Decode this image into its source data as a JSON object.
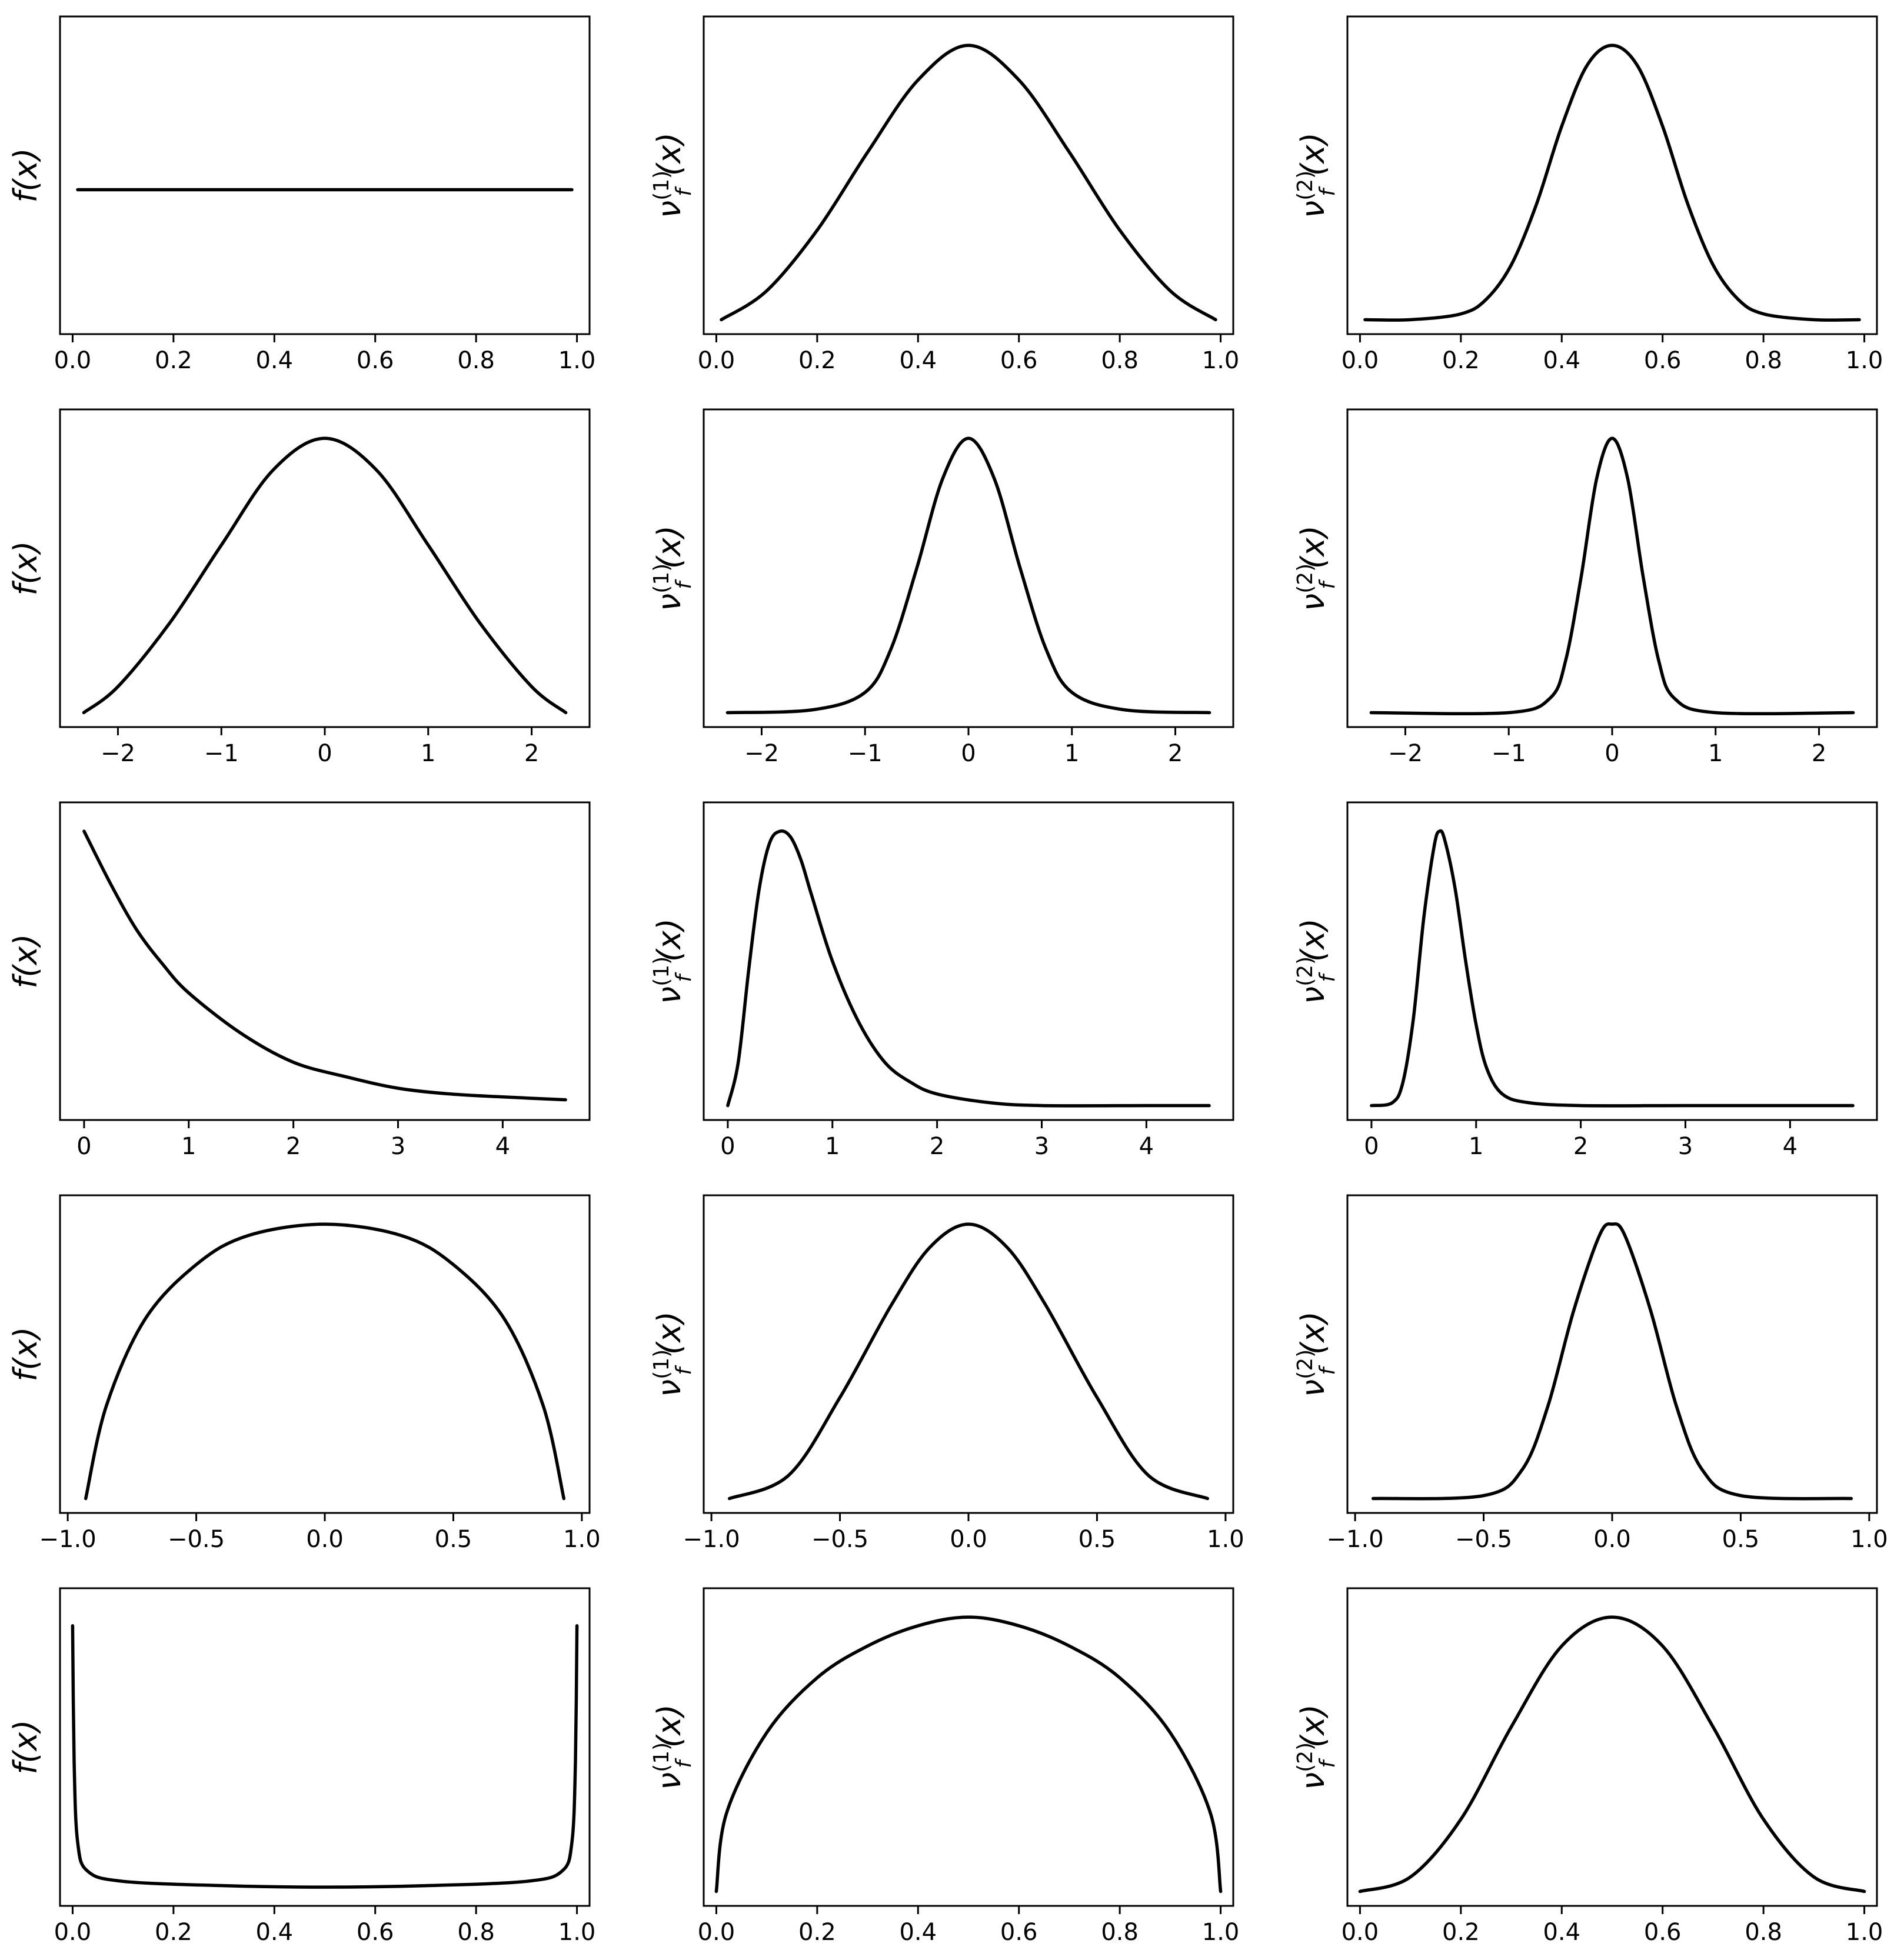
{
  "figure": {
    "rows": 5,
    "cols": 3,
    "background": "#ffffff",
    "line_color": "#000000"
  },
  "row_xaxes": [
    {
      "ticks": [
        0.0,
        0.2,
        0.4,
        0.6,
        0.8,
        1.0
      ],
      "labels": [
        "0.0",
        "0.2",
        "0.4",
        "0.6",
        "0.8",
        "1.0"
      ]
    },
    {
      "ticks": [
        -2,
        -1,
        0,
        1,
        2
      ],
      "labels": [
        "−2",
        "−1",
        "0",
        "1",
        "2"
      ]
    },
    {
      "ticks": [
        0,
        1,
        2,
        3,
        4
      ],
      "labels": [
        "0",
        "1",
        "2",
        "3",
        "4"
      ]
    },
    {
      "ticks": [
        -1.0,
        -0.5,
        0.0,
        0.5,
        1.0
      ],
      "labels": [
        "−1.0",
        "−0.5",
        "0.0",
        "0.5",
        "1.0"
      ]
    },
    {
      "ticks": [
        0.0,
        0.2,
        0.4,
        0.6,
        0.8,
        1.0
      ],
      "labels": [
        "0.0",
        "0.2",
        "0.4",
        "0.6",
        "0.8",
        "1.0"
      ]
    }
  ],
  "col_ylabels": [
    {
      "main": "f(x)",
      "sup": "",
      "sub": ""
    },
    {
      "main": "ν",
      "sup": "(1)",
      "sub": "f",
      "tail": "(x)"
    },
    {
      "main": "ν",
      "sup": "(2)",
      "sub": "f",
      "tail": "(x)"
    }
  ],
  "chart_data": [
    {
      "type": "line",
      "row": 0,
      "col": 0,
      "xlim": [
        -0.025,
        1.025
      ],
      "ylim": [
        0,
        1.1
      ],
      "x": [
        0.01,
        0.25,
        0.5,
        0.75,
        0.99
      ],
      "y": [
        0.5,
        0.5,
        0.5,
        0.5,
        0.5
      ]
    },
    {
      "type": "line",
      "row": 0,
      "col": 1,
      "xlim": [
        -0.025,
        1.025
      ],
      "ylim": [
        0,
        1.1
      ],
      "x": [
        0.01,
        0.1,
        0.2,
        0.3,
        0.4,
        0.5,
        0.6,
        0.7,
        0.8,
        0.9,
        0.99
      ],
      "y": [
        0.05,
        0.15,
        0.36,
        0.63,
        0.88,
        1.0,
        0.88,
        0.63,
        0.36,
        0.15,
        0.05
      ]
    },
    {
      "type": "line",
      "row": 0,
      "col": 2,
      "xlim": [
        -0.025,
        1.025
      ],
      "ylim": [
        0,
        1.1
      ],
      "x": [
        0.01,
        0.1,
        0.2,
        0.25,
        0.3,
        0.35,
        0.4,
        0.45,
        0.5,
        0.55,
        0.6,
        0.65,
        0.7,
        0.75,
        0.8,
        0.9,
        0.99
      ],
      "y": [
        0.05,
        0.05,
        0.07,
        0.12,
        0.24,
        0.45,
        0.72,
        0.93,
        1.0,
        0.93,
        0.72,
        0.45,
        0.24,
        0.12,
        0.07,
        0.05,
        0.05
      ]
    },
    {
      "type": "line",
      "row": 1,
      "col": 0,
      "xlim": [
        -2.56,
        2.56
      ],
      "ylim": [
        0,
        1.1
      ],
      "x": [
        -2.33,
        -2.0,
        -1.5,
        -1.0,
        -0.5,
        0.0,
        0.5,
        1.0,
        1.5,
        2.0,
        2.33
      ],
      "y": [
        0.05,
        0.14,
        0.36,
        0.63,
        0.89,
        1.0,
        0.89,
        0.63,
        0.36,
        0.14,
        0.05
      ]
    },
    {
      "type": "line",
      "row": 1,
      "col": 1,
      "xlim": [
        -2.56,
        2.56
      ],
      "ylim": [
        0,
        1.1
      ],
      "x": [
        -2.33,
        -1.5,
        -1.0,
        -0.75,
        -0.5,
        -0.25,
        0.0,
        0.25,
        0.5,
        0.75,
        1.0,
        1.5,
        2.33
      ],
      "y": [
        0.05,
        0.06,
        0.12,
        0.27,
        0.55,
        0.86,
        1.0,
        0.86,
        0.55,
        0.27,
        0.12,
        0.06,
        0.05
      ]
    },
    {
      "type": "line",
      "row": 1,
      "col": 2,
      "xlim": [
        -2.56,
        2.56
      ],
      "ylim": [
        0,
        1.1
      ],
      "x": [
        -2.33,
        -1.0,
        -0.6,
        -0.45,
        -0.3,
        -0.15,
        0.0,
        0.15,
        0.3,
        0.45,
        0.6,
        1.0,
        2.33
      ],
      "y": [
        0.05,
        0.05,
        0.1,
        0.23,
        0.52,
        0.86,
        1.0,
        0.86,
        0.52,
        0.23,
        0.1,
        0.05,
        0.05
      ]
    },
    {
      "type": "line",
      "row": 2,
      "col": 0,
      "xlim": [
        -0.23,
        4.83
      ],
      "ylim": [
        0,
        1.1
      ],
      "x": [
        0.0,
        0.25,
        0.5,
        0.75,
        1.0,
        1.5,
        2.0,
        2.5,
        3.0,
        3.5,
        4.0,
        4.6
      ],
      "y": [
        1.0,
        0.82,
        0.66,
        0.54,
        0.44,
        0.3,
        0.2,
        0.15,
        0.11,
        0.09,
        0.08,
        0.07
      ]
    },
    {
      "type": "line",
      "row": 2,
      "col": 1,
      "xlim": [
        -0.23,
        4.83
      ],
      "ylim": [
        0,
        1.1
      ],
      "x": [
        0.0,
        0.1,
        0.2,
        0.3,
        0.4,
        0.5,
        0.6,
        0.7,
        0.8,
        1.0,
        1.25,
        1.5,
        1.75,
        2.0,
        2.5,
        3.0,
        4.0,
        4.6
      ],
      "y": [
        0.05,
        0.2,
        0.52,
        0.8,
        0.96,
        1.0,
        0.98,
        0.9,
        0.78,
        0.55,
        0.34,
        0.2,
        0.13,
        0.09,
        0.06,
        0.05,
        0.05,
        0.05
      ]
    },
    {
      "type": "line",
      "row": 2,
      "col": 2,
      "xlim": [
        -0.23,
        4.83
      ],
      "ylim": [
        0,
        1.1
      ],
      "x": [
        0.0,
        0.2,
        0.3,
        0.4,
        0.5,
        0.6,
        0.65,
        0.7,
        0.8,
        0.9,
        1.0,
        1.1,
        1.25,
        1.5,
        2.0,
        3.0,
        4.6
      ],
      "y": [
        0.05,
        0.06,
        0.13,
        0.35,
        0.7,
        0.95,
        1.0,
        0.97,
        0.8,
        0.55,
        0.33,
        0.18,
        0.09,
        0.06,
        0.05,
        0.05,
        0.05
      ]
    },
    {
      "type": "line",
      "row": 3,
      "col": 0,
      "xlim": [
        -1.03,
        1.03
      ],
      "ylim": [
        0,
        1.1
      ],
      "x": [
        -0.93,
        -0.85,
        -0.7,
        -0.5,
        -0.3,
        0.0,
        0.3,
        0.5,
        0.7,
        0.85,
        0.93
      ],
      "y": [
        0.05,
        0.37,
        0.67,
        0.86,
        0.96,
        1.0,
        0.96,
        0.86,
        0.67,
        0.37,
        0.05
      ]
    },
    {
      "type": "line",
      "row": 3,
      "col": 1,
      "xlim": [
        -1.03,
        1.03
      ],
      "ylim": [
        0,
        1.1
      ],
      "x": [
        -0.93,
        -0.7,
        -0.5,
        -0.3,
        -0.15,
        0.0,
        0.15,
        0.3,
        0.5,
        0.7,
        0.93
      ],
      "y": [
        0.05,
        0.13,
        0.4,
        0.72,
        0.92,
        1.0,
        0.92,
        0.72,
        0.4,
        0.13,
        0.05
      ]
    },
    {
      "type": "line",
      "row": 3,
      "col": 2,
      "xlim": [
        -1.03,
        1.03
      ],
      "ylim": [
        0,
        1.1
      ],
      "x": [
        -0.93,
        -0.5,
        -0.35,
        -0.25,
        -0.15,
        -0.05,
        0.0,
        0.05,
        0.15,
        0.25,
        0.35,
        0.5,
        0.93
      ],
      "y": [
        0.05,
        0.06,
        0.15,
        0.37,
        0.7,
        0.96,
        1.0,
        0.96,
        0.7,
        0.37,
        0.15,
        0.06,
        0.05
      ]
    },
    {
      "type": "line",
      "row": 4,
      "col": 0,
      "xlim": [
        -0.025,
        1.025
      ],
      "ylim": [
        0,
        1.1
      ],
      "x": [
        0.0,
        0.003,
        0.01,
        0.03,
        0.1,
        0.3,
        0.5,
        0.7,
        0.9,
        0.97,
        0.99,
        0.997,
        1.0
      ],
      "y": [
        0.97,
        0.5,
        0.22,
        0.12,
        0.085,
        0.07,
        0.065,
        0.07,
        0.085,
        0.12,
        0.22,
        0.5,
        0.97
      ]
    },
    {
      "type": "line",
      "row": 4,
      "col": 1,
      "xlim": [
        -0.025,
        1.025
      ],
      "ylim": [
        0,
        1.1
      ],
      "x": [
        0.0,
        0.02,
        0.1,
        0.2,
        0.3,
        0.4,
        0.5,
        0.6,
        0.7,
        0.8,
        0.9,
        0.98,
        1.0
      ],
      "y": [
        0.05,
        0.32,
        0.6,
        0.79,
        0.9,
        0.97,
        1.0,
        0.97,
        0.9,
        0.79,
        0.6,
        0.32,
        0.05
      ]
    },
    {
      "type": "line",
      "row": 4,
      "col": 2,
      "xlim": [
        -0.025,
        1.025
      ],
      "ylim": [
        0,
        1.1
      ],
      "x": [
        0.0,
        0.1,
        0.2,
        0.3,
        0.4,
        0.5,
        0.6,
        0.7,
        0.8,
        0.9,
        1.0
      ],
      "y": [
        0.05,
        0.1,
        0.3,
        0.62,
        0.9,
        1.0,
        0.9,
        0.62,
        0.3,
        0.1,
        0.05
      ]
    }
  ]
}
